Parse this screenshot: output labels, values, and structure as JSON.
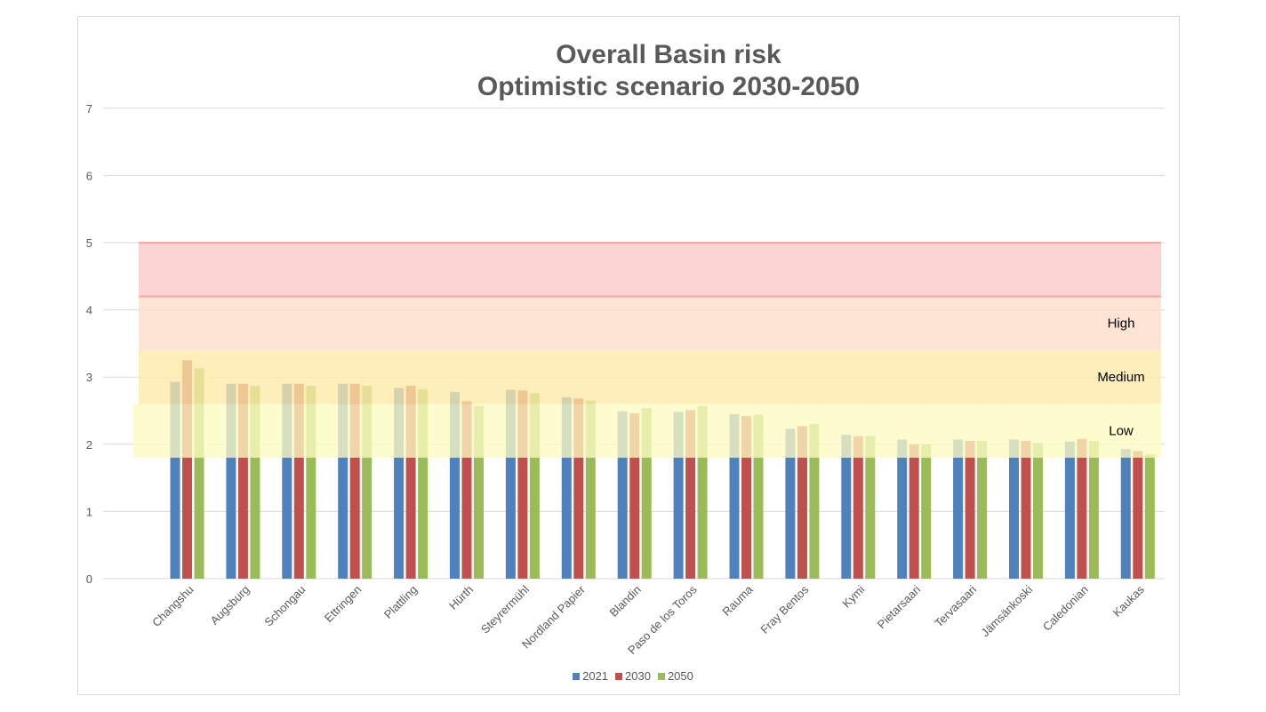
{
  "chart_data": {
    "type": "bar",
    "title": "Overall Basin risk",
    "subtitle": "Optimistic scenario 2030-2050",
    "xlabel": "",
    "ylabel": "",
    "ylim": [
      0,
      7
    ],
    "yticks": [
      "0",
      "1",
      "2",
      "3",
      "4",
      "5",
      "6",
      "7"
    ],
    "grid": true,
    "legend_position": "bottom",
    "categories": [
      "Changshu",
      "Augsburg",
      "Schongau",
      "Ettringen",
      "Plattling",
      "Hürth",
      "Steyrermühl",
      "Nordland Papier",
      "Blandin",
      "Paso de los Toros",
      "Rauma",
      "Fray Bentos",
      "Kymi",
      "Pietarsaari",
      "Tervasaari",
      "Jämsänkoski",
      "Caledonian",
      "Kaukas"
    ],
    "series": [
      {
        "name": "2021",
        "color": "#4f81bd",
        "values": [
          2.93,
          2.9,
          2.9,
          2.9,
          2.84,
          2.78,
          2.81,
          2.7,
          2.49,
          2.48,
          2.45,
          2.23,
          2.14,
          2.07,
          2.07,
          2.07,
          2.04,
          1.93
        ]
      },
      {
        "name": "2030",
        "color": "#c0504d",
        "values": [
          3.25,
          2.9,
          2.9,
          2.9,
          2.87,
          2.64,
          2.8,
          2.68,
          2.46,
          2.51,
          2.42,
          2.27,
          2.12,
          2.0,
          2.05,
          2.05,
          2.08,
          1.9
        ]
      },
      {
        "name": "2050",
        "color": "#9bbb59",
        "values": [
          3.13,
          2.87,
          2.87,
          2.87,
          2.82,
          2.57,
          2.76,
          2.65,
          2.54,
          2.57,
          2.44,
          2.3,
          2.12,
          2.0,
          2.05,
          2.02,
          2.05,
          1.85
        ]
      }
    ],
    "risk_bands": [
      {
        "label": "",
        "from": 4.2,
        "to": 5.0,
        "color": "#fcc8c8"
      },
      {
        "label": "High",
        "from": 3.4,
        "to": 4.2,
        "color": "#fcdcc8"
      },
      {
        "label": "Medium",
        "from": 2.6,
        "to": 3.4,
        "color": "#fde9a6"
      },
      {
        "label": "Low",
        "from": 1.8,
        "to": 2.6,
        "color": "#fdfbc2"
      }
    ]
  }
}
